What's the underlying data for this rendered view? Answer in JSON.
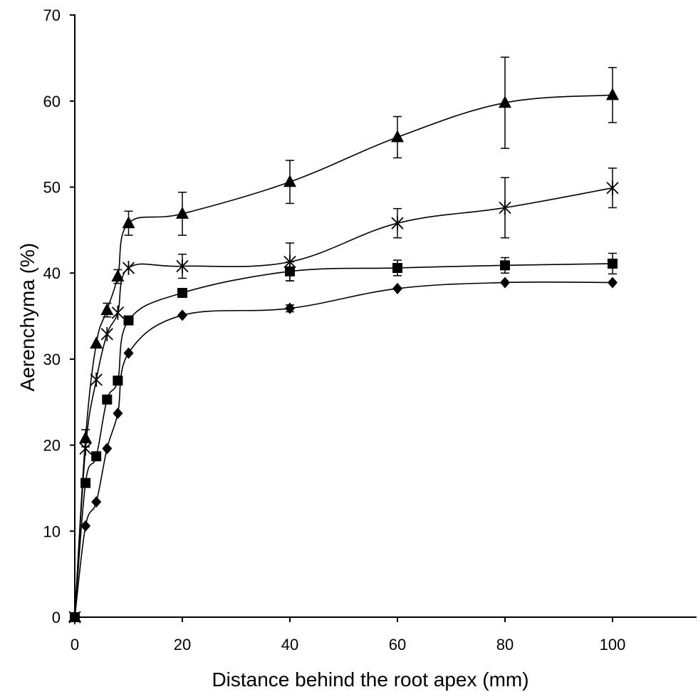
{
  "chart_data": {
    "type": "line",
    "title": "",
    "xlabel": "Distance behind the root apex (mm)",
    "ylabel": "Aerenchyma (%)",
    "xlim": [
      0,
      100
    ],
    "ylim": [
      0,
      70
    ],
    "x_ticks": [
      0,
      20,
      40,
      60,
      80,
      100
    ],
    "y_ticks": [
      0,
      10,
      20,
      30,
      40,
      50,
      60,
      70
    ],
    "grid": false,
    "legend": "none",
    "x": [
      0,
      2,
      4,
      6,
      8,
      10,
      20,
      40,
      60,
      80,
      100
    ],
    "series": [
      {
        "marker": "triangle",
        "values": [
          0,
          20.8,
          31.8,
          35.7,
          39.6,
          45.8,
          46.9,
          50.6,
          55.8,
          59.8,
          60.7
        ],
        "errors": [
          0,
          1.0,
          0,
          0.8,
          0.8,
          1.4,
          2.5,
          2.5,
          2.4,
          5.3,
          3.2
        ]
      },
      {
        "marker": "asterisk",
        "values": [
          0,
          19.6,
          27.6,
          32.9,
          35.4,
          40.6,
          40.8,
          41.3,
          45.8,
          47.6,
          49.9
        ],
        "errors": [
          0,
          0,
          0,
          0,
          0,
          0,
          1.4,
          2.2,
          1.7,
          3.5,
          2.3
        ]
      },
      {
        "marker": "square",
        "values": [
          0,
          15.6,
          18.7,
          25.3,
          27.5,
          34.5,
          37.7,
          40.2,
          40.6,
          40.9,
          41.1
        ],
        "errors": [
          0,
          0,
          0,
          0,
          0,
          0,
          0.4,
          1.1,
          0.9,
          0.9,
          1.2
        ]
      },
      {
        "marker": "diamond",
        "values": [
          0,
          10.6,
          13.4,
          19.6,
          23.7,
          30.7,
          35.1,
          35.9,
          38.2,
          38.9,
          38.9
        ],
        "errors": [
          0,
          0,
          0,
          0,
          0,
          0,
          0,
          0.4,
          0,
          0,
          0
        ]
      }
    ]
  }
}
